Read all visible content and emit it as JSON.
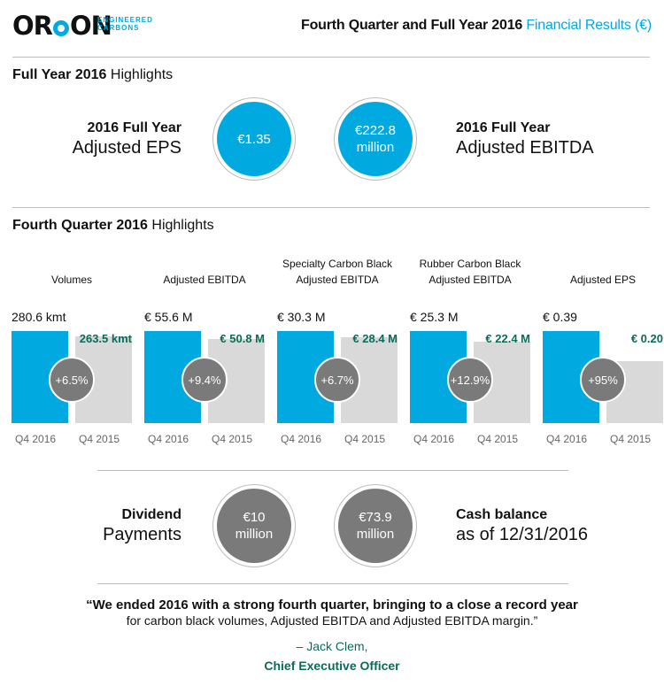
{
  "header": {
    "logo_word_a": "OR",
    "logo_word_b": "ON",
    "logo_sub_1": "ENGINEERED",
    "logo_sub_2": "CARBONS",
    "title_bold": "Fourth Quarter and Full Year 2016",
    "title_accent": "Financial Results (€)"
  },
  "full_year": {
    "title_bold": "Full Year 2016",
    "title_rest": "Highlights",
    "eps_label_1": "2016 Full Year",
    "eps_label_2": "Adjusted EPS",
    "eps_value": "€1.35",
    "ebitda_value": "€222.8 million",
    "ebitda_label_1": "2016 Full Year",
    "ebitda_label_2": "Adjusted EBITDA"
  },
  "quarter": {
    "title_bold": "Fourth Quarter 2016",
    "title_rest": "Highlights",
    "metrics": [
      {
        "label_1": "",
        "label_2": "Volumes",
        "q4_2016_text": "280.6 kmt",
        "q4_2015_text": "263.5 kmt",
        "change": "+6.5%",
        "q4_2016": 280.6,
        "q4_2015": 263.5,
        "x1": "Q4 2016",
        "x2": "Q4 2015"
      },
      {
        "label_1": "",
        "label_2": "Adjusted EBITDA",
        "q4_2016_text": "€ 55.6 M",
        "q4_2015_text": "€ 50.8 M",
        "change": "+9.4%",
        "q4_2016": 55.6,
        "q4_2015": 50.8,
        "x1": "Q4 2016",
        "x2": "Q4 2015"
      },
      {
        "label_1": "Specialty Carbon Black",
        "label_2": "Adjusted EBITDA",
        "q4_2016_text": "€ 30.3 M",
        "q4_2015_text": "€ 28.4 M",
        "change": "+6.7%",
        "q4_2016": 30.3,
        "q4_2015": 28.4,
        "x1": "Q4 2016",
        "x2": "Q4 2015"
      },
      {
        "label_1": "Rubber Carbon Black",
        "label_2": "Adjusted EBITDA",
        "q4_2016_text": "€ 25.3 M",
        "q4_2015_text": "€ 22.4 M",
        "change": "+12.9%",
        "q4_2016": 25.3,
        "q4_2015": 22.4,
        "x1": "Q4 2016",
        "x2": "Q4 2015"
      },
      {
        "label_1": "",
        "label_2": "Adjusted EPS",
        "q4_2016_text": "€ 0.39",
        "q4_2015_text": "€ 0.20",
        "change": "+95%",
        "q4_2016": 0.39,
        "q4_2015": 0.2,
        "x1": "Q4 2016",
        "x2": "Q4 2015"
      }
    ]
  },
  "dividend": {
    "label_1": "Dividend",
    "label_2": "Payments",
    "value": "€10 million"
  },
  "cash": {
    "value": "€73.9 million",
    "label_1": "Cash balance",
    "label_2": "as of 12/31/2016"
  },
  "quote": {
    "line_1": "“We ended 2016 with a strong fourth quarter, bringing to a close a record year",
    "line_2": "for carbon black volumes, Adjusted EBITDA and Adjusted EBITDA margin.”",
    "author": "– Jack Clem,",
    "role": "Chief Executive Officer"
  },
  "colors": {
    "accent": "#00a9e0",
    "gray_circle": "#7a7a7a",
    "prior_bar": "#d9d9d9",
    "teal_text": "#0a6b5b"
  }
}
